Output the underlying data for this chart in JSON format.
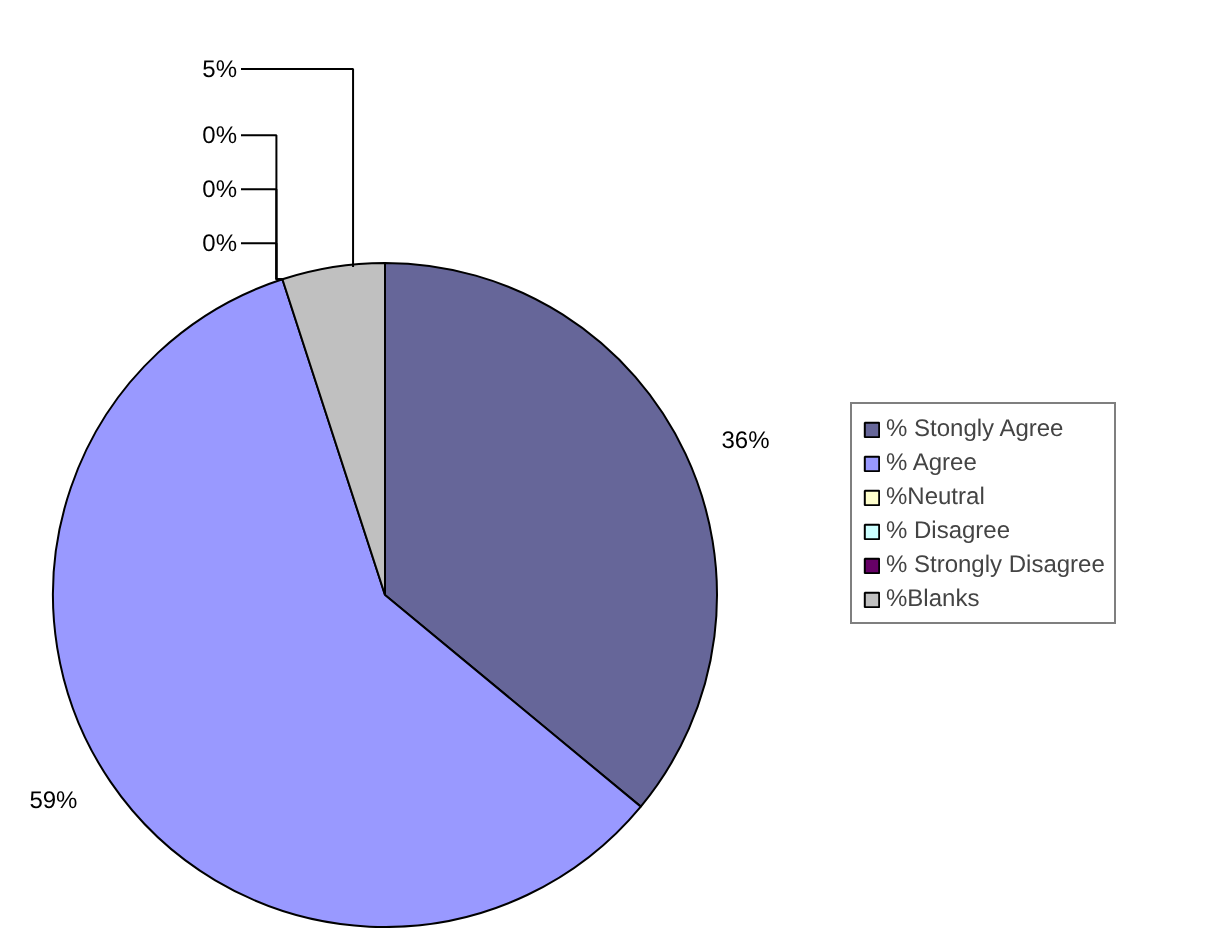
{
  "chart_data": {
    "type": "pie",
    "categories": [
      "% Stongly Agree",
      "% Agree",
      "%Neutral",
      "% Disagree",
      "% Strongly Disagree",
      "%Blanks"
    ],
    "values": [
      36,
      59,
      0,
      0,
      0,
      5
    ],
    "colors": [
      "#666699",
      "#9999ff",
      "#ffffcc",
      "#ccffff",
      "#660066",
      "#c0c0c0"
    ],
    "value_labels": [
      "36%",
      "59%",
      "0%",
      "0%",
      "0%",
      "5%"
    ],
    "legend": "right"
  }
}
